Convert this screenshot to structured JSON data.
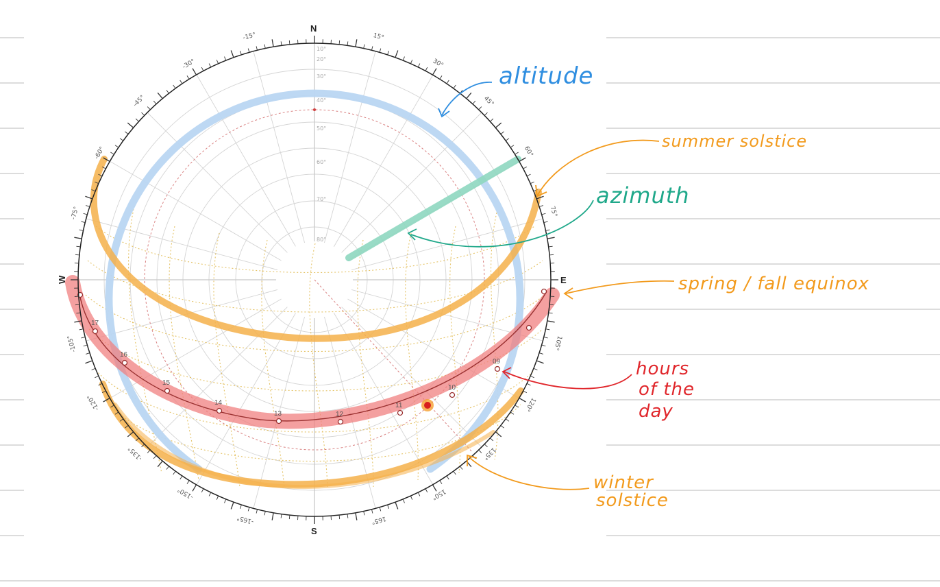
{
  "diagram": {
    "cardinals": {
      "north": "N",
      "south": "S",
      "east": "E",
      "west": "W"
    },
    "azimuth_ticks": [
      {
        "label": "-15°",
        "az": -15
      },
      {
        "label": "15°",
        "az": 15
      },
      {
        "label": "-30°",
        "az": -30
      },
      {
        "label": "30°",
        "az": 30
      },
      {
        "label": "-45°",
        "az": -45
      },
      {
        "label": "45°",
        "az": 45
      },
      {
        "label": "-60°",
        "az": -60
      },
      {
        "label": "60°",
        "az": 60
      },
      {
        "label": "-75°",
        "az": -75
      },
      {
        "label": "75°",
        "az": 75
      },
      {
        "label": "-105°",
        "az": -105
      },
      {
        "label": "105°",
        "az": 105
      },
      {
        "label": "-120°",
        "az": -120
      },
      {
        "label": "120°",
        "az": 120
      },
      {
        "label": "-135°",
        "az": -135
      },
      {
        "label": "135°",
        "az": 135
      },
      {
        "label": "-150°",
        "az": -150
      },
      {
        "label": "150°",
        "az": 150
      },
      {
        "label": "-165°",
        "az": -165
      },
      {
        "label": "165°",
        "az": 165
      }
    ],
    "altitude_rings": [
      {
        "label": "10°",
        "alt": 10
      },
      {
        "label": "20°",
        "alt": 20
      },
      {
        "label": "30°",
        "alt": 30
      },
      {
        "label": "40°",
        "alt": 40
      },
      {
        "label": "50°",
        "alt": 50
      },
      {
        "label": "60°",
        "alt": 60
      },
      {
        "label": "70°",
        "alt": 70
      },
      {
        "label": "80°",
        "alt": 80
      }
    ],
    "hour_markers": [
      {
        "label": "09",
        "hour": 9
      },
      {
        "label": "10",
        "hour": 10
      },
      {
        "label": "11",
        "hour": 11
      },
      {
        "label": "12",
        "hour": 12
      },
      {
        "label": "13",
        "hour": 13
      },
      {
        "label": "14",
        "hour": 14
      },
      {
        "label": "15",
        "hour": 15
      },
      {
        "label": "16",
        "hour": 16
      },
      {
        "label": "17",
        "hour": 17
      }
    ]
  },
  "annotations": {
    "altitude": "altitude",
    "summer_solstice": "summer solstice",
    "azimuth": "azimuth",
    "equinox": "spring / fall equinox",
    "hours_line1": "hours",
    "hours_line2": "of the",
    "hours_line3": "day",
    "winter_line1": "winter",
    "winter_line2": "solstice"
  },
  "colors": {
    "altitude": "#2f8ee0",
    "azimuth": "#1fa88a",
    "solstice": "#f29a1c",
    "hours": "#e0262b",
    "ruled_line": "#c7c7c7"
  }
}
